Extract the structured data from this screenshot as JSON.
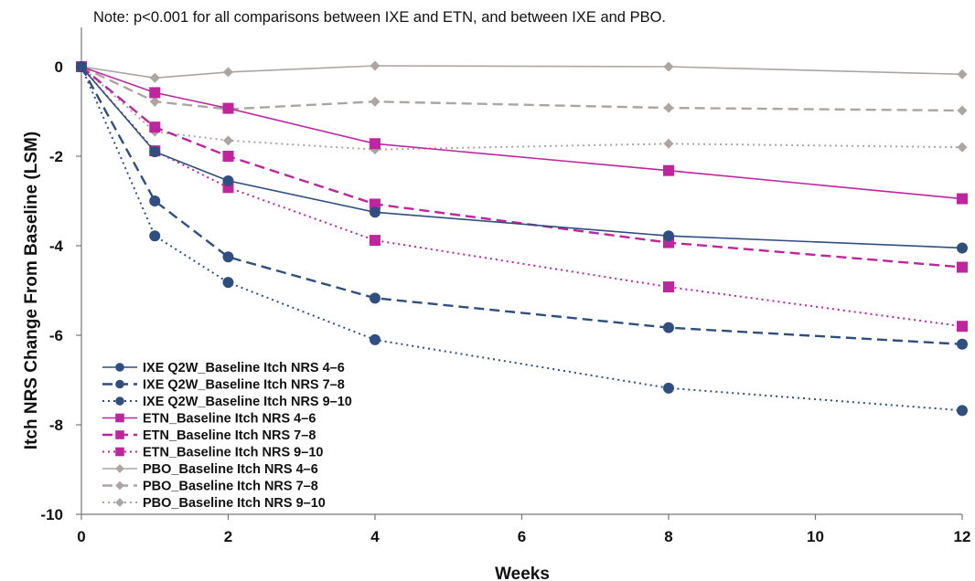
{
  "chart_data": {
    "type": "line",
    "note": "Note: p<0.001 for all comparisons between IXE and ETN, and between IXE and PBO.",
    "xlabel": "Weeks",
    "ylabel": "Itch NRS Change From Baseline (LSM)",
    "xlim": [
      0,
      12
    ],
    "ylim": [
      -10,
      0
    ],
    "xticks": [
      0,
      2,
      4,
      6,
      8,
      10,
      12
    ],
    "yticks": [
      0,
      -2,
      -4,
      -6,
      -8,
      -10
    ],
    "grid": false,
    "legend_position": "bottom-left",
    "x": [
      0,
      1,
      2,
      4,
      8,
      12
    ],
    "series": [
      {
        "name": "IXE Q2W_Baseline Itch NRS 4–6",
        "values": [
          0,
          -1.9,
          -2.55,
          -3.25,
          -3.78,
          -4.05
        ],
        "color": "#2f4f80",
        "dash": "solid",
        "marker": "circle"
      },
      {
        "name": "IXE Q2W_Baseline Itch NRS 7–8",
        "values": [
          0,
          -3.0,
          -4.25,
          -5.17,
          -5.83,
          -6.2
        ],
        "color": "#2f4f80",
        "dash": "dashed",
        "marker": "circle"
      },
      {
        "name": "IXE Q2W_Baseline Itch NRS 9–10",
        "values": [
          0,
          -3.78,
          -4.82,
          -6.1,
          -7.18,
          -7.68
        ],
        "color": "#2f4f80",
        "dash": "dotted",
        "marker": "circle"
      },
      {
        "name": "ETN_Baseline Itch NRS 4–6",
        "values": [
          0,
          -0.58,
          -0.93,
          -1.72,
          -2.32,
          -2.95
        ],
        "color": "#c0249f",
        "dash": "solid",
        "marker": "square"
      },
      {
        "name": "ETN_Baseline Itch NRS 7–8",
        "values": [
          0,
          -1.35,
          -2.0,
          -3.07,
          -3.93,
          -4.48
        ],
        "color": "#c0249f",
        "dash": "dashed",
        "marker": "square"
      },
      {
        "name": "ETN_Baseline Itch NRS 9–10",
        "values": [
          0,
          -1.88,
          -2.7,
          -3.88,
          -4.92,
          -5.8
        ],
        "color": "#c0249f",
        "dash": "dotted",
        "marker": "square"
      },
      {
        "name": "PBO_Baseline Itch NRS 4–6",
        "values": [
          0,
          -0.25,
          -0.12,
          0.02,
          0.0,
          -0.17
        ],
        "color": "#ada5a2",
        "dash": "solid",
        "marker": "diamond"
      },
      {
        "name": "PBO_Baseline Itch NRS 7–8",
        "values": [
          0,
          -0.78,
          -0.95,
          -0.78,
          -0.92,
          -0.98
        ],
        "color": "#ada5a2",
        "dash": "dashed",
        "marker": "diamond"
      },
      {
        "name": "PBO_Baseline Itch NRS 9–10",
        "values": [
          0,
          -1.45,
          -1.65,
          -1.85,
          -1.72,
          -1.8
        ],
        "color": "#ada5a2",
        "dash": "dotted",
        "marker": "diamond"
      }
    ]
  }
}
